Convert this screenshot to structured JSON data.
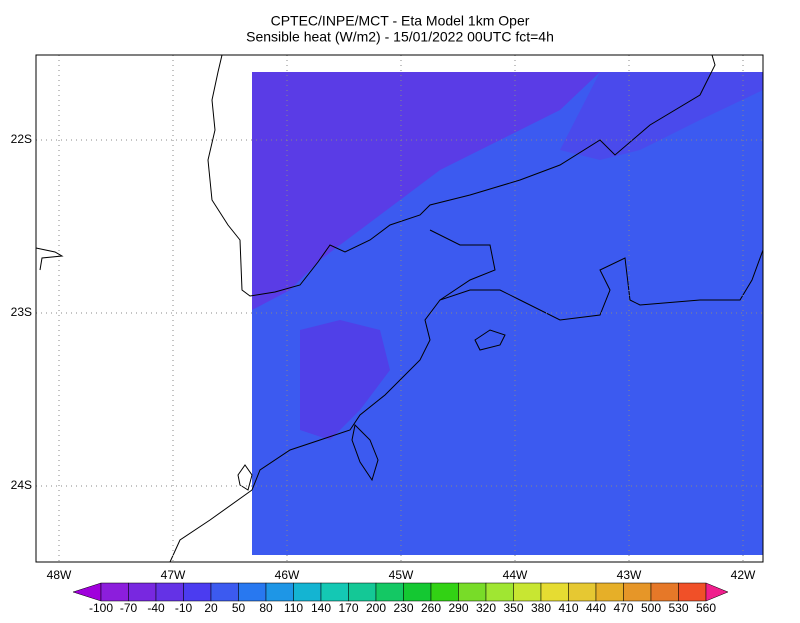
{
  "header": {
    "title": [
      "CPTEC/INPE/MCT -  Eta Model 1km Oper",
      "Sensible heat (W/m2) - 15/01/2022 00UTC fct=4h"
    ]
  },
  "map": {
    "lat_labels": [
      "22S",
      "23S",
      "24S"
    ],
    "lon_labels": [
      "48W",
      "47W",
      "46W",
      "45W",
      "44W",
      "43W",
      "42W"
    ]
  },
  "colorbar": {
    "labels": [
      -100,
      -70,
      -40,
      -10,
      20,
      50,
      80,
      110,
      140,
      170,
      200,
      230,
      260,
      290,
      320,
      350,
      380,
      410,
      440,
      470,
      500,
      530,
      560
    ],
    "colors": [
      "#a000dc",
      "#8c1edc",
      "#7828e0",
      "#6432e6",
      "#4b3cf0",
      "#3c5af0",
      "#2878f0",
      "#1e96e6",
      "#14b4d2",
      "#14c8b4",
      "#14c896",
      "#14c864",
      "#14c832",
      "#32d214",
      "#78dc28",
      "#a0e632",
      "#c8e632",
      "#e6dc32",
      "#e6c832",
      "#e6af28",
      "#e69628",
      "#e67828",
      "#f05028",
      "#f03250",
      "#f01e8c"
    ]
  }
}
